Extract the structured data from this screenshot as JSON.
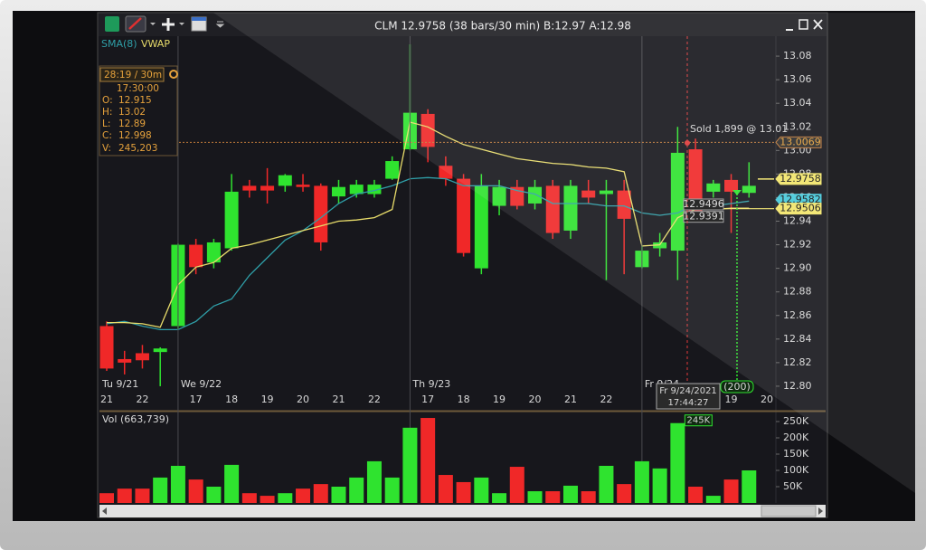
{
  "window": {
    "title": "CLM 12.9758 (38 bars/30 min) B:12.97 A:12.98"
  },
  "info": {
    "period": "28:19 / 30m",
    "time": "17:30:00",
    "rows": [
      [
        "O:",
        "12.915"
      ],
      [
        "H:",
        "13.02"
      ],
      [
        "L:",
        "12.89"
      ],
      [
        "C:",
        "12.998"
      ],
      [
        "V:",
        "245,203"
      ]
    ]
  },
  "chart_data": [
    {
      "type": "candlestick",
      "categories": [
        "21",
        null,
        "22",
        null,
        null,
        "17",
        null,
        "18",
        null,
        "19",
        null,
        "20",
        null,
        "21",
        null,
        "22",
        null,
        null,
        "17",
        null,
        "18",
        null,
        "19",
        null,
        "20",
        null,
        "21",
        null,
        "22",
        null,
        null,
        null,
        null,
        null,
        null,
        "19",
        null,
        "20"
      ],
      "day_labels": [
        "Tu 9/21",
        null,
        null,
        null,
        "We 9/22",
        null,
        null,
        null,
        null,
        null,
        null,
        null,
        null,
        null,
        null,
        null,
        null,
        "Th 9/23",
        null,
        null,
        null,
        null,
        null,
        null,
        null,
        null,
        null,
        null,
        null,
        null,
        "Fr 9/24",
        null,
        null,
        null,
        null,
        null,
        null,
        null
      ],
      "open": [
        12.851,
        12.823,
        12.828,
        12.829,
        12.851,
        12.92,
        12.905,
        12.917,
        12.97,
        12.97,
        12.97,
        12.971,
        12.97,
        12.961,
        12.963,
        12.963,
        12.976,
        13.001,
        13.031,
        12.987,
        12.976,
        12.9,
        12.953,
        12.969,
        12.955,
        12.97,
        12.932,
        12.966,
        12.963,
        12.966,
        12.901,
        12.917,
        12.915,
        13.001,
        12.965,
        12.975,
        12.964,
        null
      ],
      "high": [
        12.855,
        12.83,
        12.835,
        12.833,
        12.921,
        12.925,
        12.925,
        12.98,
        12.975,
        12.985,
        12.98,
        12.98,
        12.972,
        12.975,
        12.975,
        12.975,
        12.995,
        13.09,
        13.035,
        12.995,
        12.98,
        12.98,
        12.975,
        12.975,
        12.975,
        12.975,
        12.975,
        12.975,
        12.975,
        12.975,
        12.92,
        12.93,
        13.02,
        13.01,
        12.975,
        12.98,
        12.99,
        null
      ],
      "low": [
        12.813,
        12.81,
        12.815,
        12.8,
        12.848,
        12.895,
        12.9,
        12.915,
        12.96,
        12.955,
        12.965,
        12.965,
        12.915,
        12.955,
        12.96,
        12.96,
        12.975,
        13.0,
        12.99,
        12.97,
        12.91,
        12.895,
        12.945,
        12.95,
        12.95,
        12.925,
        12.925,
        12.955,
        12.89,
        12.895,
        12.9,
        12.91,
        12.89,
        12.94,
        12.96,
        12.93,
        12.96,
        null
      ],
      "close": [
        12.815,
        12.82,
        12.822,
        12.832,
        12.92,
        12.901,
        12.922,
        12.965,
        12.966,
        12.966,
        12.979,
        12.969,
        12.922,
        12.969,
        12.971,
        12.971,
        12.991,
        13.032,
        13.003,
        12.976,
        12.913,
        12.97,
        12.969,
        12.953,
        12.969,
        12.93,
        12.97,
        12.96,
        12.966,
        12.942,
        12.915,
        12.922,
        12.998,
        12.943,
        12.972,
        12.965,
        12.97,
        null
      ],
      "up_color": "#2fe32f",
      "down_color": "#f02828",
      "lines": [
        {
          "name": "SMA(8)",
          "color": "#2f9fa8",
          "values": [
            12.853,
            12.855,
            12.851,
            12.848,
            12.848,
            12.855,
            12.868,
            12.874,
            12.894,
            12.909,
            12.924,
            12.932,
            12.943,
            12.955,
            12.963,
            12.966,
            12.97,
            12.976,
            12.977,
            12.976,
            12.97,
            12.97,
            12.97,
            12.966,
            12.963,
            12.955,
            12.955,
            12.955,
            12.953,
            12.953,
            12.947,
            12.945,
            12.947,
            12.955,
            12.953,
            12.955,
            12.957,
            null
          ]
        },
        {
          "name": "VWAP",
          "color": "#e8dc6a",
          "values": [
            12.854,
            12.854,
            12.853,
            12.85,
            12.886,
            12.901,
            12.905,
            12.917,
            12.92,
            12.924,
            12.928,
            12.932,
            12.936,
            12.94,
            12.941,
            12.943,
            12.95,
            13.024,
            13.02,
            13.012,
            13.005,
            13.001,
            12.997,
            12.993,
            12.991,
            12.989,
            12.988,
            12.986,
            12.985,
            12.982,
            12.919,
            12.92,
            12.943,
            12.95,
            12.95,
            12.951,
            12.951,
            null
          ]
        }
      ],
      "ylim": [
        12.78,
        13.1
      ],
      "yticks": [
        13.08,
        13.06,
        13.04,
        13.02,
        {
          "value": 13,
          "label": "13.00"
        },
        12.98,
        12.96,
        12.94,
        12.92,
        {
          "value": 12.9,
          "label": "12.90"
        },
        12.88,
        12.86,
        12.84,
        12.82,
        {
          "value": 12.8,
          "label": "12.80"
        }
      ],
      "annotation": "Sold 1,899 @ 13.01",
      "price_tags": [
        13.0069,
        12.9758,
        12.9582,
        12.9506
      ],
      "tag_colors": [
        "#2b2b2b",
        "#f2e56a",
        "#45c8da",
        "#f2e56a"
      ],
      "order_tags": [
        12.9496,
        12.9391
      ],
      "crosshair": {
        "date": "Fr 9/24/2021",
        "time": "17:44:27"
      },
      "order_label": "(200)"
    },
    {
      "type": "bar",
      "title": "Vol (663,739)",
      "values": [
        30000,
        44000,
        44000,
        78000,
        114000,
        72000,
        50000,
        117000,
        30000,
        22000,
        30000,
        44000,
        58000,
        50000,
        78000,
        128000,
        78000,
        231000,
        261000,
        86000,
        64000,
        78000,
        30000,
        111000,
        36000,
        36000,
        53000,
        36000,
        114000,
        58000,
        128000,
        106000,
        245203,
        50000,
        22000,
        72000,
        100000,
        null
      ],
      "value_labels": [
        null,
        null,
        null,
        null,
        null,
        null,
        null,
        null,
        null,
        null,
        null,
        null,
        null,
        null,
        null,
        null,
        null,
        null,
        null,
        null,
        null,
        null,
        null,
        null,
        null,
        null,
        null,
        null,
        null,
        null,
        null,
        null,
        "245K",
        null,
        null,
        null,
        null,
        null
      ],
      "ylim": [
        0,
        275000
      ],
      "yticks": [
        {
          "value": 250000,
          "label": "250K"
        },
        {
          "value": 200000,
          "label": "200K"
        },
        {
          "value": 150000,
          "label": "150K"
        },
        {
          "value": 100000,
          "label": "100K"
        },
        {
          "value": 50000,
          "label": "50K"
        }
      ]
    }
  ]
}
